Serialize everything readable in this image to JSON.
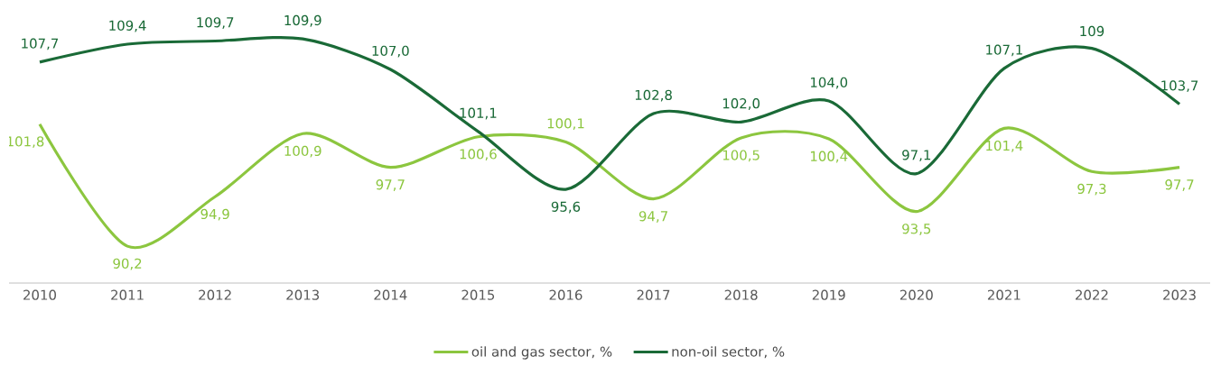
{
  "chart_data": {
    "type": "line",
    "categories": [
      "2010",
      "2011",
      "2012",
      "2013",
      "2014",
      "2015",
      "2016",
      "2017",
      "2018",
      "2019",
      "2020",
      "2021",
      "2022",
      "2023"
    ],
    "series": [
      {
        "name": "oil and gas sector, %",
        "color": "#8cc63f",
        "values": [
          101.8,
          90.2,
          94.9,
          100.9,
          97.7,
          100.6,
          100.1,
          94.7,
          100.5,
          100.4,
          93.5,
          101.4,
          97.3,
          97.7
        ],
        "value_labels": [
          "101,8",
          "90,2",
          "94,9",
          "100,9",
          "97,7",
          "100,6",
          "100,1",
          "94,7",
          "100,5",
          "100,4",
          "93,5",
          "101,4",
          "97,3",
          "97,7"
        ]
      },
      {
        "name": "non-oil sector, %",
        "color": "#1a6a37",
        "values": [
          107.7,
          109.4,
          109.7,
          109.9,
          107.0,
          101.1,
          95.6,
          102.8,
          102.0,
          104.0,
          97.1,
          107.1,
          109,
          103.7
        ],
        "value_labels": [
          "107,7",
          "109,4",
          "109,7",
          "109,9",
          "107,0",
          "101,1",
          "95,6",
          "102,8",
          "102,0",
          "104,0",
          "97,1",
          "107,1",
          "109",
          "103,7"
        ]
      }
    ],
    "legend": "bottom",
    "grid": false
  }
}
